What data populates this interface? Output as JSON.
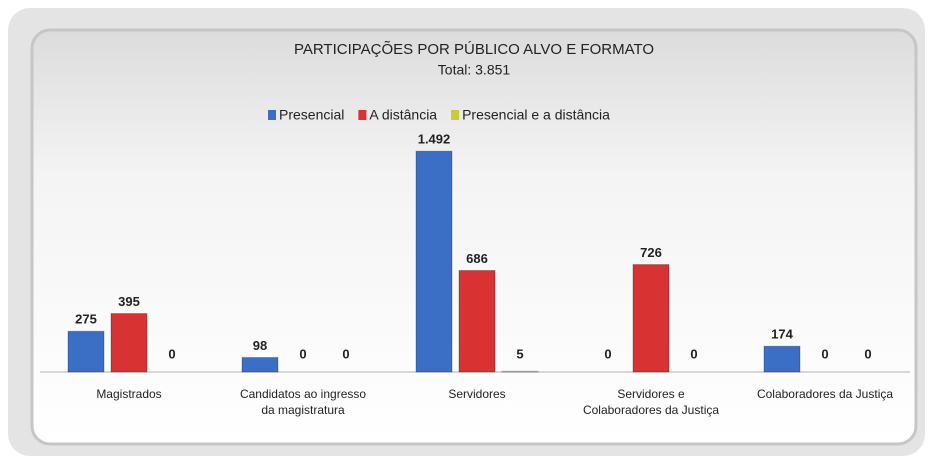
{
  "chart_data": {
    "type": "bar",
    "title": "PARTICIPAÇÕES POR PÚBLICO ALVO E FORMATO",
    "subtitle": "Total: 3.851",
    "categories": [
      "Magistrados",
      "Candidatos ao ingresso\nda magistratura",
      "Servidores",
      "Servidores e\nColaboradores da Justiça",
      "Colaboradores da Justiça"
    ],
    "series": [
      {
        "name": "Presencial",
        "color": "#3b6fc6",
        "values": [
          275,
          98,
          1492,
          0,
          174
        ],
        "value_labels": [
          "275",
          "98",
          "1.492",
          "0",
          "174"
        ]
      },
      {
        "name": "A distância",
        "color": "#d83232",
        "values": [
          395,
          0,
          686,
          726,
          0
        ]
      },
      {
        "name": "Presencial e a distância",
        "color": "#c9c93a",
        "values": [
          0,
          0,
          5,
          0,
          0
        ]
      }
    ],
    "ylim": [
      0,
      1500
    ],
    "legend": "top"
  }
}
